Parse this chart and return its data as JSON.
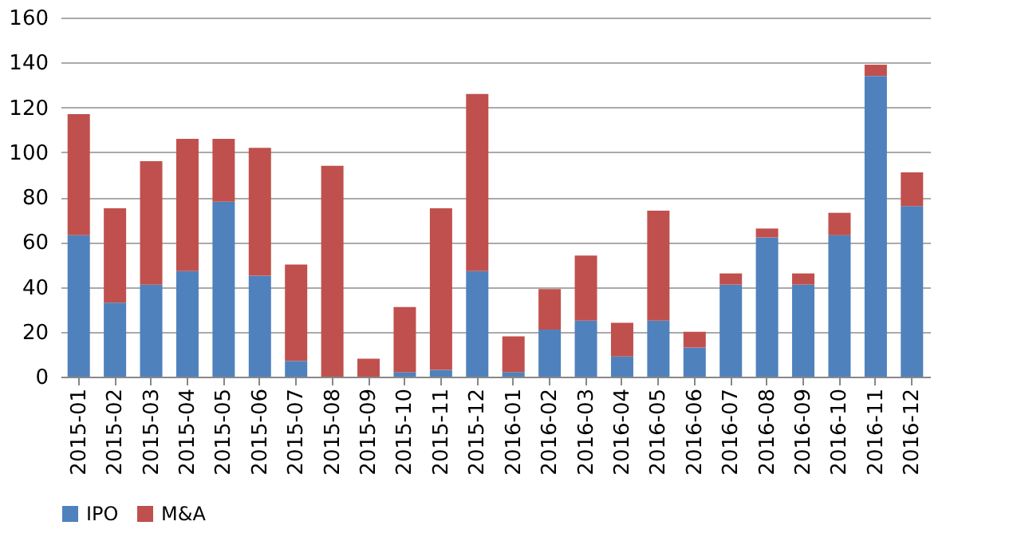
{
  "chart_data": {
    "type": "bar",
    "stacked": true,
    "grid": "y",
    "legend": "bottom",
    "categories": [
      "2015-01",
      "2015-02",
      "2015-03",
      "2015-04",
      "2015-05",
      "2015-06",
      "2015-07",
      "2015-08",
      "2015-09",
      "2015-10",
      "2015-11",
      "2015-12",
      "2016-01",
      "2016-02",
      "2016-03",
      "2016-04",
      "2016-05",
      "2016-06",
      "2016-07",
      "2016-08",
      "2016-09",
      "2016-10",
      "2016-11",
      "2016-12"
    ],
    "series": [
      {
        "name": "IPO",
        "color": "#4f81bd",
        "values": [
          63,
          33,
          41,
          47,
          78,
          45,
          7,
          0,
          0,
          2,
          3,
          47,
          2,
          21,
          25,
          9,
          25,
          13,
          41,
          62,
          41,
          63,
          134,
          76
        ]
      },
      {
        "name": "M&A",
        "color": "#c0504d",
        "values": [
          54,
          42,
          55,
          59,
          28,
          57,
          43,
          94,
          8,
          29,
          72,
          79,
          16,
          18,
          29,
          15,
          49,
          7,
          5,
          4,
          5,
          10,
          5,
          15
        ]
      }
    ],
    "ylim": [
      0,
      160
    ],
    "yticks": [
      0,
      20,
      40,
      60,
      80,
      100,
      120,
      140,
      160
    ]
  }
}
